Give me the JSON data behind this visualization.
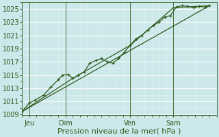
{
  "xlabel": "Pression niveau de la mer( hPa )",
  "background_color": "#cde8ea",
  "grid_major_color": "#ffffff",
  "grid_minor_color": "#dff0f2",
  "line_color": "#2d5a1b",
  "ylim": [
    1009,
    1026
  ],
  "yticks": [
    1009,
    1011,
    1013,
    1015,
    1017,
    1019,
    1021,
    1023,
    1025
  ],
  "day_labels": [
    "Jeu",
    "Dim",
    "Ven",
    "Sam"
  ],
  "day_positions": [
    0.5,
    3.0,
    7.5,
    10.5
  ],
  "vline_positions": [
    0.5,
    3.0,
    7.5,
    10.5
  ],
  "xlim": [
    0,
    13.5
  ],
  "series1_x": [
    0.0,
    0.5,
    0.9,
    1.5,
    2.0,
    2.5,
    2.8,
    3.2,
    3.5,
    3.9,
    4.3,
    4.7,
    5.1,
    5.5,
    5.9,
    6.3,
    6.7,
    7.1,
    7.5,
    7.9,
    8.3,
    8.7,
    9.1,
    9.5,
    9.9,
    10.3,
    10.7,
    11.1,
    11.5,
    11.9,
    12.3,
    12.7,
    13.0
  ],
  "series1_y": [
    1009.5,
    1010.8,
    1011.2,
    1012.0,
    1013.2,
    1014.3,
    1015.0,
    1015.1,
    1014.5,
    1015.0,
    1015.5,
    1016.8,
    1017.2,
    1017.5,
    1017.0,
    1016.8,
    1017.5,
    1018.5,
    1019.5,
    1020.5,
    1021.0,
    1021.8,
    1022.5,
    1023.0,
    1023.8,
    1024.0,
    1025.3,
    1025.5,
    1025.4,
    1025.2,
    1025.4,
    1025.3,
    1025.5
  ],
  "series2_x": [
    0.0,
    13.0
  ],
  "series2_y": [
    1009.5,
    1025.5
  ],
  "series3_x": [
    0.0,
    3.5,
    7.5,
    10.5,
    13.0
  ],
  "series3_y": [
    1009.5,
    1014.5,
    1019.5,
    1025.2,
    1025.5
  ],
  "font_color": "#2d5a1b",
  "font_size": 7,
  "xlabel_fontsize": 8
}
